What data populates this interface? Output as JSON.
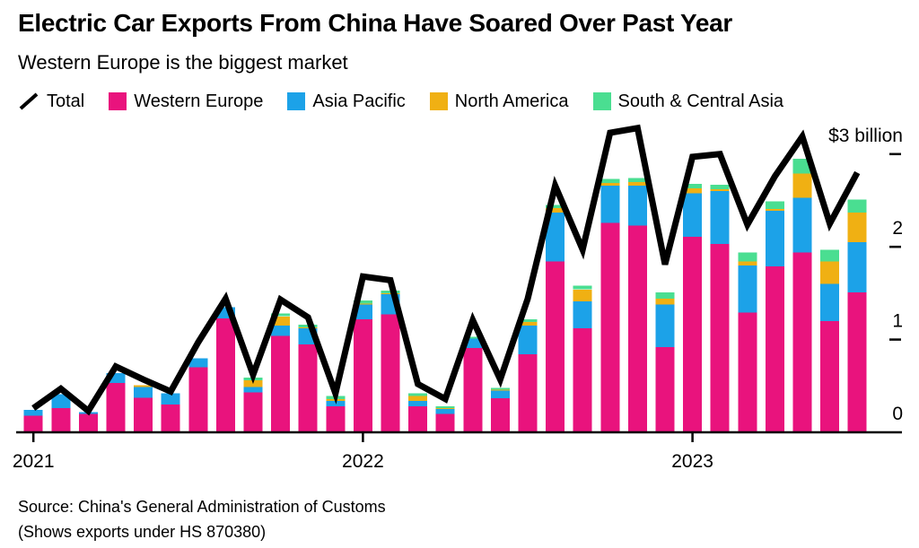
{
  "header": {
    "title": "Electric Car Exports From China Have Soared Over Past Year",
    "subtitle": "Western Europe is the biggest market"
  },
  "legend": [
    {
      "label": "Total",
      "type": "line",
      "color": "#000000"
    },
    {
      "label": "Western Europe",
      "type": "square",
      "color": "#E9137D"
    },
    {
      "label": "Asia Pacific",
      "type": "square",
      "color": "#1CA2E8"
    },
    {
      "label": "North America",
      "type": "square",
      "color": "#F0B013"
    },
    {
      "label": "South & Central Asia",
      "type": "square",
      "color": "#4ADE91"
    }
  ],
  "footer": {
    "source_line1": "Source: China's General Administration of Customs",
    "source_line2": "(Shows exports under HS 870380)"
  },
  "chart_data": {
    "type": "bar",
    "stacked": true,
    "overlay_line": "Total",
    "unit": "USD billions per month",
    "x": [
      "2021-01",
      "2021-02",
      "2021-03",
      "2021-04",
      "2021-05",
      "2021-06",
      "2021-07",
      "2021-08",
      "2021-09",
      "2021-10",
      "2021-11",
      "2021-12",
      "2022-01",
      "2022-02",
      "2022-03",
      "2022-04",
      "2022-05",
      "2022-06",
      "2022-07",
      "2022-08",
      "2022-09",
      "2022-10",
      "2022-11",
      "2022-12",
      "2023-01",
      "2023-02",
      "2023-03",
      "2023-04",
      "2023-05",
      "2023-06",
      "2023-07"
    ],
    "series": [
      {
        "name": "Western Europe",
        "type": "bar",
        "color": "#E9137D",
        "values": [
          0.18,
          0.26,
          0.2,
          0.53,
          0.37,
          0.3,
          0.7,
          1.23,
          0.43,
          1.04,
          0.95,
          0.28,
          1.22,
          1.27,
          0.28,
          0.2,
          0.91,
          0.37,
          0.84,
          1.84,
          1.12,
          2.26,
          2.23,
          0.92,
          2.11,
          2.03,
          1.29,
          1.79,
          1.94,
          1.2,
          1.51
        ]
      },
      {
        "name": "Asia Pacific",
        "type": "bar",
        "color": "#1CA2E8",
        "values": [
          0.06,
          0.15,
          0.02,
          0.11,
          0.12,
          0.12,
          0.1,
          0.12,
          0.06,
          0.11,
          0.17,
          0.06,
          0.16,
          0.22,
          0.06,
          0.05,
          0.1,
          0.08,
          0.31,
          0.53,
          0.29,
          0.4,
          0.43,
          0.46,
          0.47,
          0.57,
          0.51,
          0.6,
          0.59,
          0.4,
          0.54
        ]
      },
      {
        "name": "North America",
        "type": "bar",
        "color": "#F0B013",
        "values": [
          0,
          0,
          0,
          0,
          0.02,
          0,
          0,
          0,
          0.07,
          0.1,
          0.01,
          0.02,
          0.01,
          0.01,
          0.05,
          0.01,
          0,
          0.01,
          0.04,
          0.05,
          0.13,
          0.03,
          0.04,
          0.06,
          0.05,
          0.02,
          0.04,
          0.02,
          0.26,
          0.24,
          0.32
        ]
      },
      {
        "name": "South & Central Asia",
        "type": "bar",
        "color": "#4ADE91",
        "values": [
          0,
          0,
          0,
          0,
          0,
          0,
          0,
          0,
          0.03,
          0.03,
          0.03,
          0.03,
          0.03,
          0.03,
          0.03,
          0.02,
          0.02,
          0.02,
          0.03,
          0.03,
          0.04,
          0.04,
          0.04,
          0.07,
          0.05,
          0.05,
          0.1,
          0.08,
          0.16,
          0.13,
          0.14
        ]
      },
      {
        "name": "Total",
        "type": "line",
        "color": "#000000",
        "values": [
          0.26,
          0.47,
          0.23,
          0.71,
          0.57,
          0.44,
          0.97,
          1.44,
          0.62,
          1.43,
          1.24,
          0.42,
          1.68,
          1.64,
          0.52,
          0.36,
          1.21,
          0.57,
          1.44,
          2.66,
          1.97,
          3.23,
          3.28,
          1.81,
          2.97,
          3.0,
          2.24,
          2.76,
          3.19,
          2.25,
          2.8
        ]
      }
    ],
    "y_axis": {
      "min": 0,
      "max": 3,
      "ticks": [
        {
          "value": 0,
          "label": "0",
          "dash": false
        },
        {
          "value": 1,
          "label": "1",
          "dash": true
        },
        {
          "value": 2,
          "label": "2",
          "dash": true
        },
        {
          "value": 3,
          "label": "$3 billion",
          "dash": true
        }
      ],
      "side": "right"
    },
    "x_axis": {
      "ticks": [
        {
          "index": 0,
          "label": "2021"
        },
        {
          "index": 12,
          "label": "2022"
        },
        {
          "index": 24,
          "label": "2023"
        }
      ]
    },
    "grid": false,
    "legend_position": "top"
  }
}
